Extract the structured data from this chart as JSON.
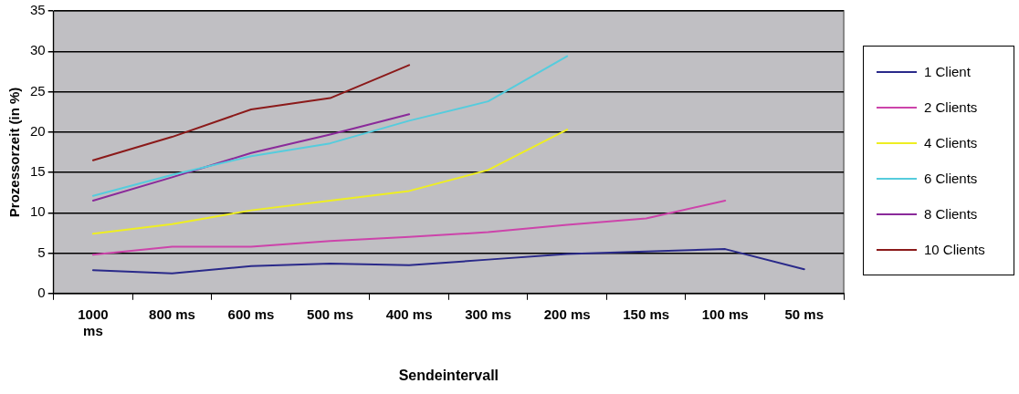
{
  "chart_data": {
    "type": "line",
    "xlabel": "Sendeintervall",
    "ylabel": "Prozessorzeit (in %)",
    "categories": [
      "1000 ms",
      "800 ms",
      "600 ms",
      "500 ms",
      "400 ms",
      "300 ms",
      "200 ms",
      "150 ms",
      "100 ms",
      "50 ms"
    ],
    "ylim": [
      0,
      35
    ],
    "yticks": [
      0,
      5,
      10,
      15,
      20,
      25,
      30,
      35
    ],
    "grid": "y",
    "legend": "right",
    "marker": "none",
    "line_style": "solid",
    "series": [
      {
        "name": "1 Client",
        "color": "#2a2a8a",
        "values": [
          2.9,
          2.5,
          3.4,
          3.7,
          3.5,
          4.2,
          4.9,
          5.2,
          5.5,
          3.0
        ]
      },
      {
        "name": "2 Clients",
        "color": "#cc44aa",
        "values": [
          4.8,
          5.8,
          5.8,
          6.5,
          7.0,
          7.6,
          8.5,
          9.3,
          11.5,
          null
        ]
      },
      {
        "name": "4 Clients",
        "color": "#eeee22",
        "values": [
          7.4,
          8.6,
          10.3,
          11.5,
          12.7,
          15.3,
          20.3,
          null,
          null,
          null
        ]
      },
      {
        "name": "6 Clients",
        "color": "#55ccdd",
        "values": [
          12.1,
          14.7,
          17.0,
          18.6,
          21.4,
          23.8,
          29.4,
          null,
          null,
          null
        ]
      },
      {
        "name": "8 Clients",
        "color": "#8a2a9a",
        "values": [
          11.5,
          14.4,
          17.4,
          19.7,
          22.2,
          null,
          null,
          null,
          null,
          null
        ]
      },
      {
        "name": "10 Clients",
        "color": "#8b1a1a",
        "values": [
          16.5,
          19.4,
          22.8,
          24.2,
          28.3,
          null,
          null,
          null,
          null,
          null
        ]
      }
    ]
  }
}
